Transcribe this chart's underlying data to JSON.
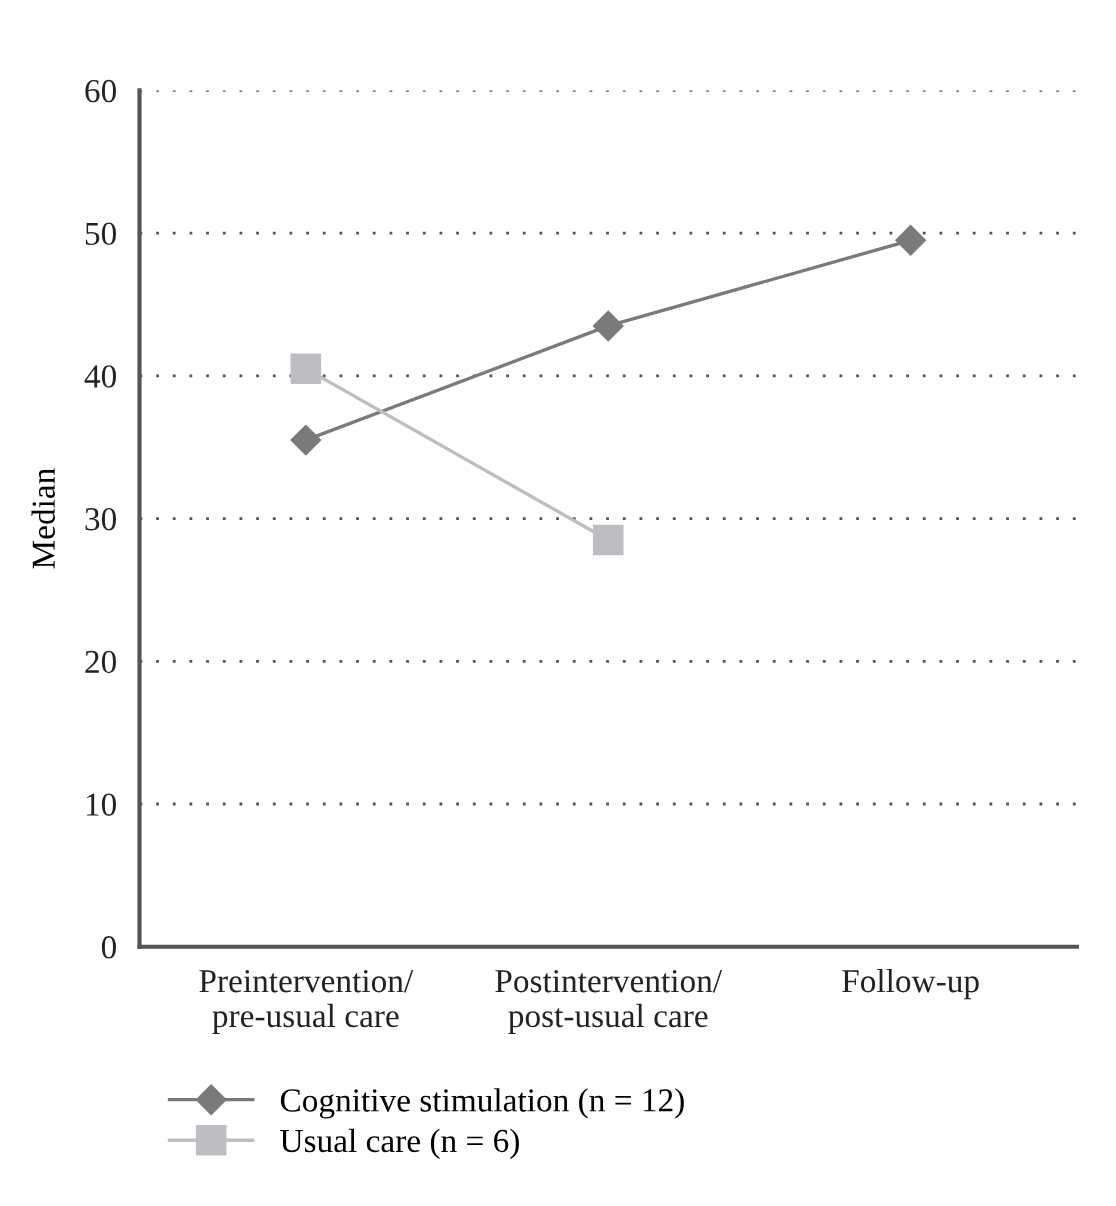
{
  "chart_data": {
    "type": "line",
    "ylabel": "Median",
    "categories": [
      "Preintervention/\npre-usual care",
      "Postintervention/\npost-usual care",
      "Follow-up"
    ],
    "series": [
      {
        "name": "Cognitive stimulation (n = 12)",
        "color": "#7a7a7a",
        "marker": "diamond",
        "values": [
          35.5,
          43.5,
          49.5
        ]
      },
      {
        "name": "Usual care (n = 6)",
        "color": "#bdbdc2",
        "marker": "square",
        "values": [
          40.5,
          28.5,
          null
        ]
      }
    ],
    "ylim": [
      0,
      60
    ],
    "yticks": [
      0,
      10,
      20,
      30,
      40,
      50,
      60
    ],
    "grid": "y",
    "legend": "bottom left",
    "line_style": "solid"
  }
}
